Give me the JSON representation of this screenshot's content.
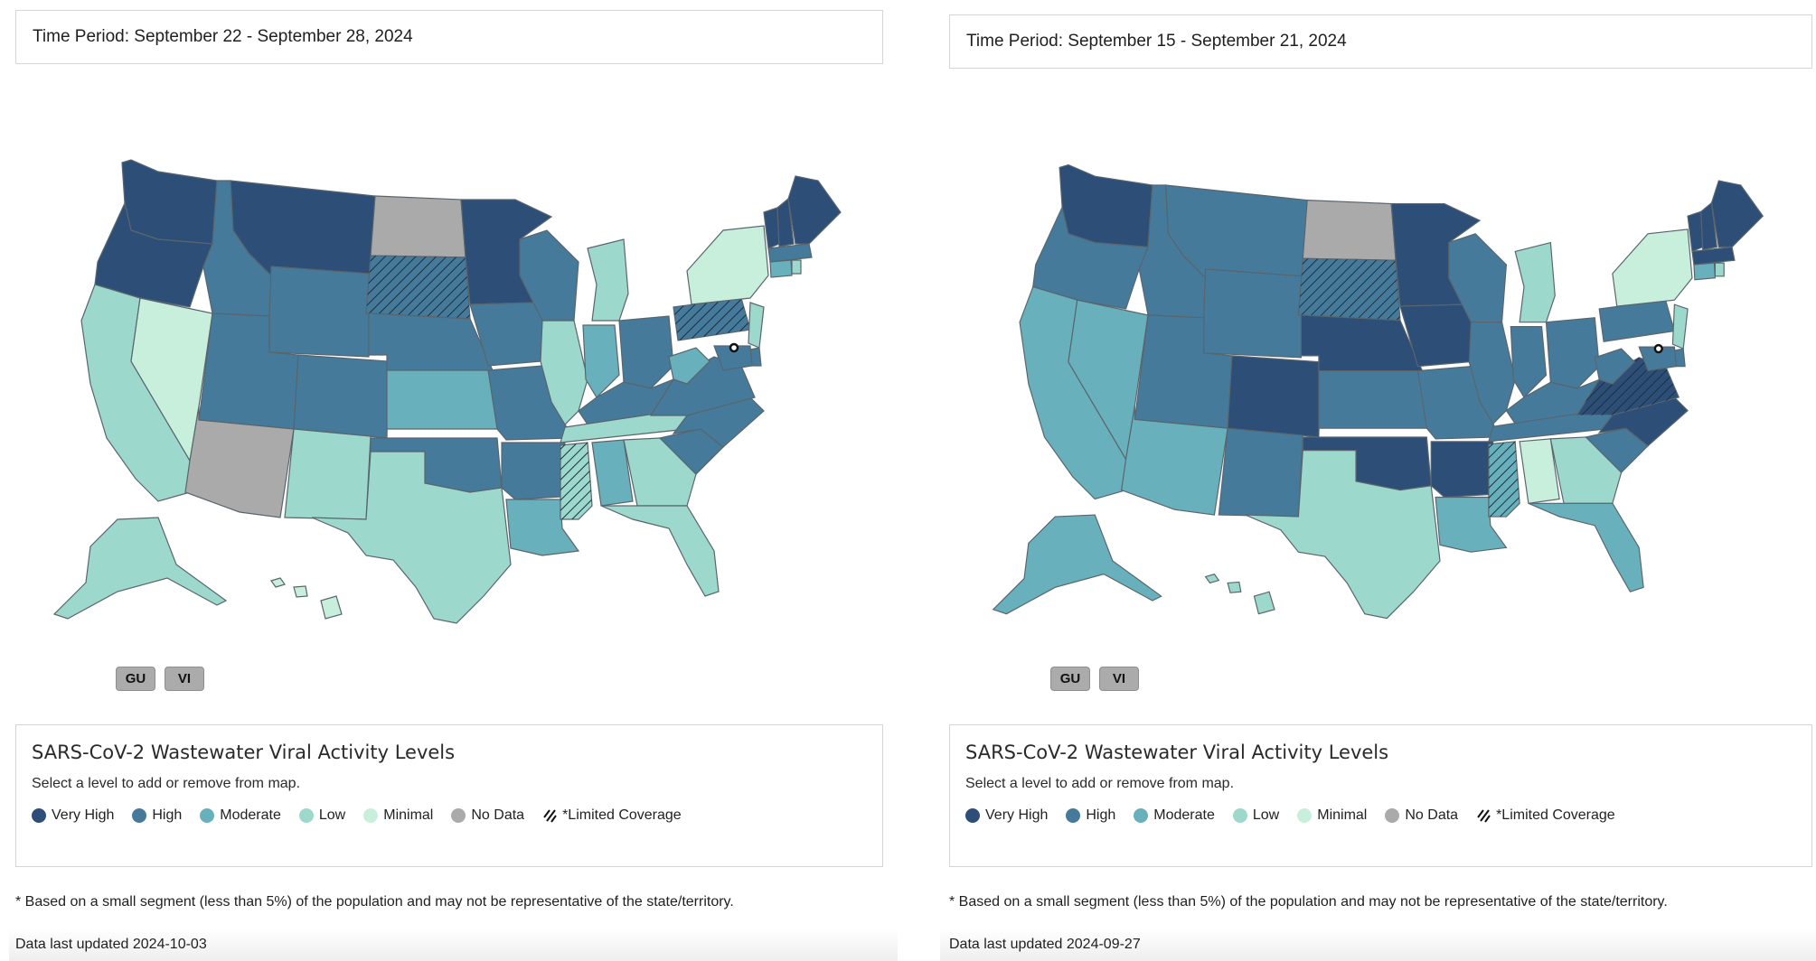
{
  "colors": {
    "very_high": "#2d4f77",
    "high": "#457a9b",
    "moderate": "#68b0bc",
    "low": "#9dd8cc",
    "minimal": "#c8efdc",
    "no_data": "#aaaaaa",
    "state_border": "#59656d"
  },
  "legend": {
    "title": "SARS-CoV-2 Wastewater Viral Activity Levels",
    "subtitle": "Select a level to add or remove from map.",
    "items": [
      {
        "label": "Very High",
        "level": "very_high"
      },
      {
        "label": "High",
        "level": "high"
      },
      {
        "label": "Moderate",
        "level": "moderate"
      },
      {
        "label": "Low",
        "level": "low"
      },
      {
        "label": "Minimal",
        "level": "minimal"
      },
      {
        "label": "No Data",
        "level": "no_data"
      },
      {
        "label": "*Limited Coverage",
        "level": "limited"
      }
    ]
  },
  "territories": [
    "GU",
    "VI"
  ],
  "footnote": "* Based on a small segment (less than 5%) of the population and may not be representative of the state/territory.",
  "panels": [
    {
      "time_period": "Time Period: September 22 - September 28, 2024",
      "updated": "Data last updated 2024-10-03",
      "states": {
        "WA": "very_high",
        "OR": "very_high",
        "MT": "very_high",
        "MN": "very_high",
        "ME": "very_high",
        "VT": "very_high",
        "NH": "very_high",
        "ID": "high",
        "WY": "high",
        "UT": "high",
        "CO": "high",
        "NE": "high",
        "SD": "high",
        "IA": "high",
        "WI": "high",
        "MO": "high",
        "AR": "high",
        "OK": "high",
        "OH": "high",
        "KY": "high",
        "VA": "high",
        "NC": "high",
        "SC": "high",
        "PA": "high",
        "MA": "high",
        "MD": "high",
        "DE": "high",
        "KS": "moderate",
        "IN": "moderate",
        "WV": "moderate",
        "AL": "moderate",
        "LA": "moderate",
        "CT": "moderate",
        "CA": "low",
        "NM": "low",
        "TX": "low",
        "MI": "low",
        "IL": "low",
        "TN": "low",
        "GA": "low",
        "FL": "low",
        "NJ": "low",
        "RI": "low",
        "MS": "low",
        "HI": "minimal",
        "NV": "minimal",
        "NY": "minimal",
        "AK": "low",
        "AZ": "no_data",
        "ND": "no_data"
      },
      "limited": [
        "SD",
        "PA",
        "MS"
      ]
    },
    {
      "time_period": "Time Period: September 15 - September 21, 2024",
      "updated": "Data last updated 2024-09-27",
      "states": {
        "WA": "very_high",
        "MN": "very_high",
        "IA": "very_high",
        "CO": "very_high",
        "NE": "very_high",
        "OK": "very_high",
        "AR": "very_high",
        "NC": "very_high",
        "VA": "very_high",
        "ME": "very_high",
        "VT": "very_high",
        "NH": "very_high",
        "MA": "very_high",
        "OR": "high",
        "ID": "high",
        "MT": "high",
        "WY": "high",
        "UT": "high",
        "NM": "high",
        "KS": "high",
        "MO": "high",
        "WI": "high",
        "IL": "high",
        "IN": "high",
        "OH": "high",
        "KY": "high",
        "TN": "high",
        "SC": "high",
        "PA": "high",
        "WV": "high",
        "MD": "high",
        "DE": "high",
        "SD": "high",
        "CA": "moderate",
        "NV": "moderate",
        "AZ": "moderate",
        "LA": "moderate",
        "FL": "moderate",
        "AK": "moderate",
        "MS": "moderate",
        "CT": "moderate",
        "TX": "low",
        "MI": "low",
        "AL": "minimal",
        "GA": "low",
        "NJ": "low",
        "RI": "low",
        "HI": "low",
        "NY": "minimal",
        "ND": "no_data"
      },
      "limited": [
        "SD",
        "VA",
        "MS"
      ]
    }
  ]
}
